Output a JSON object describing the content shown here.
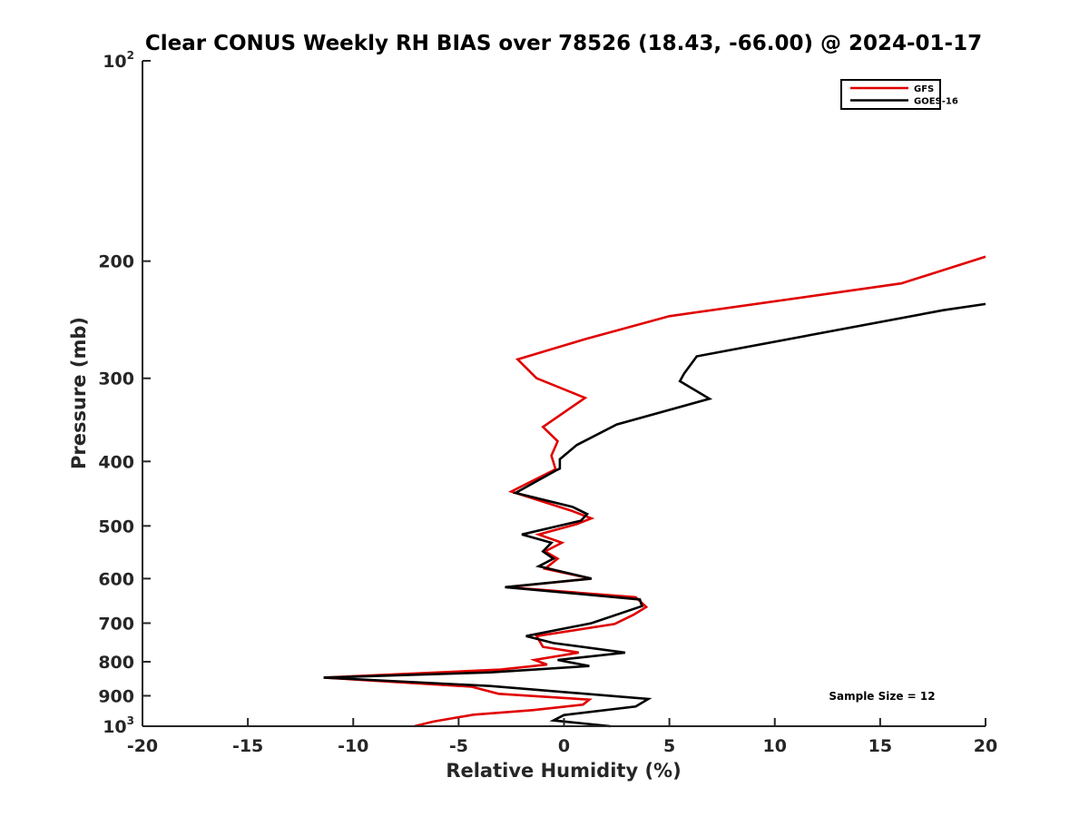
{
  "chart_data": {
    "type": "line",
    "title": "Clear CONUS Weekly RH BIAS over 78526 (18.43, -66.00) @ 2024-01-17",
    "xlabel": "Relative Humidity (%)",
    "ylabel": "Pressure (mb)",
    "xlim": [
      -20,
      20
    ],
    "ylim": [
      100,
      1000
    ],
    "y_scale": "log",
    "y_reversed": true,
    "x_ticks": [
      {
        "value": -20,
        "label": "-20"
      },
      {
        "value": -15,
        "label": "-15"
      },
      {
        "value": -10,
        "label": "-10"
      },
      {
        "value": -5,
        "label": "-5"
      },
      {
        "value": 0,
        "label": "0"
      },
      {
        "value": 5,
        "label": "5"
      },
      {
        "value": 10,
        "label": "10"
      },
      {
        "value": 15,
        "label": "15"
      },
      {
        "value": 20,
        "label": "20"
      }
    ],
    "y_ticks": [
      {
        "value": 100,
        "base": "10",
        "exp": "2"
      },
      {
        "value": 200,
        "base": "200",
        "exp": ""
      },
      {
        "value": 300,
        "base": "300",
        "exp": ""
      },
      {
        "value": 400,
        "base": "400",
        "exp": ""
      },
      {
        "value": 500,
        "base": "500",
        "exp": ""
      },
      {
        "value": 600,
        "base": "600",
        "exp": ""
      },
      {
        "value": 700,
        "base": "700",
        "exp": ""
      },
      {
        "value": 800,
        "base": "800",
        "exp": ""
      },
      {
        "value": 900,
        "base": "900",
        "exp": ""
      },
      {
        "value": 1000,
        "base": "10",
        "exp": "3"
      }
    ],
    "grid": false,
    "legend_position": "top-right",
    "annotation": "Sample Size = 12",
    "series": [
      {
        "name": "GFS",
        "color": "#e00000",
        "points": [
          [
            20.0,
            197
          ],
          [
            16.0,
            216
          ],
          [
            5.0,
            242
          ],
          [
            1.0,
            262
          ],
          [
            -2.2,
            281
          ],
          [
            -1.3,
            300
          ],
          [
            1.0,
            321
          ],
          [
            -1.0,
            355
          ],
          [
            -0.3,
            373
          ],
          [
            -0.6,
            392
          ],
          [
            -0.4,
            411
          ],
          [
            -2.5,
            444
          ],
          [
            0.4,
            475
          ],
          [
            1.3,
            487
          ],
          [
            0.6,
            497
          ],
          [
            -1.2,
            515
          ],
          [
            -0.1,
            530
          ],
          [
            -0.9,
            546
          ],
          [
            -0.3,
            560
          ],
          [
            -0.9,
            580
          ],
          [
            1.3,
            600
          ],
          [
            -2.7,
            618
          ],
          [
            3.4,
            640
          ],
          [
            3.9,
            662
          ],
          [
            3.3,
            680
          ],
          [
            2.4,
            702
          ],
          [
            -1.3,
            732
          ],
          [
            -1.0,
            760
          ],
          [
            0.7,
            775
          ],
          [
            -1.4,
            795
          ],
          [
            -0.8,
            808
          ],
          [
            -3.0,
            822
          ],
          [
            -11.4,
            845
          ],
          [
            -4.4,
            872
          ],
          [
            -3.1,
            894
          ],
          [
            1.2,
            912
          ],
          [
            0.9,
            928
          ],
          [
            -1.5,
            946
          ],
          [
            -4.3,
            961
          ],
          [
            -6.2,
            984
          ],
          [
            -7.1,
            1000
          ]
        ]
      },
      {
        "name": "GOES-16",
        "color": "#000000",
        "points": [
          [
            20.0,
            232
          ],
          [
            18.0,
            237
          ],
          [
            6.3,
            278
          ],
          [
            5.7,
            295
          ],
          [
            5.5,
            303
          ],
          [
            6.9,
            322
          ],
          [
            2.5,
            352
          ],
          [
            0.6,
            378
          ],
          [
            -0.2,
            397
          ],
          [
            -0.2,
            410
          ],
          [
            -0.4,
            413
          ],
          [
            -2.3,
            446
          ],
          [
            0.4,
            468
          ],
          [
            1.1,
            480
          ],
          [
            0.8,
            491
          ],
          [
            -2.0,
            515
          ],
          [
            -0.6,
            530
          ],
          [
            -1.0,
            546
          ],
          [
            -0.5,
            560
          ],
          [
            -1.2,
            575
          ],
          [
            1.3,
            600
          ],
          [
            -2.8,
            618
          ],
          [
            3.6,
            645
          ],
          [
            3.7,
            660
          ],
          [
            1.3,
            700
          ],
          [
            -1.8,
            732
          ],
          [
            -0.5,
            750
          ],
          [
            2.9,
            775
          ],
          [
            -0.3,
            795
          ],
          [
            1.2,
            812
          ],
          [
            -3.5,
            830
          ],
          [
            -11.4,
            845
          ],
          [
            -3.5,
            870
          ],
          [
            4.0,
            910
          ],
          [
            3.4,
            934
          ],
          [
            0.0,
            962
          ],
          [
            -0.5,
            980
          ],
          [
            2.2,
            1000
          ]
        ]
      }
    ]
  }
}
